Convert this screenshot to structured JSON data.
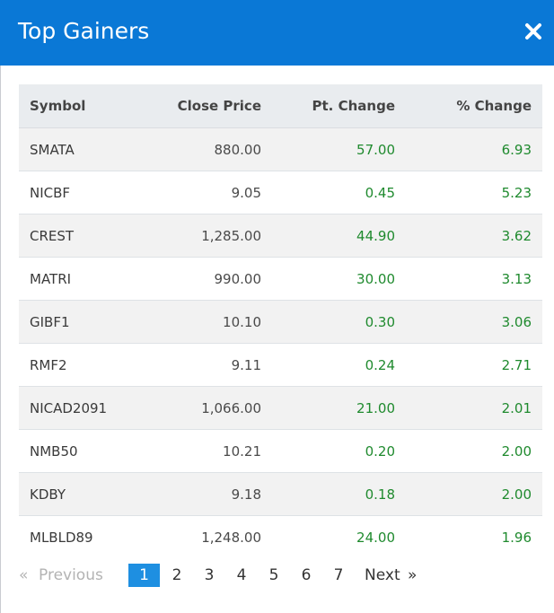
{
  "modal": {
    "title": "Top Gainers",
    "close_icon": "close-icon"
  },
  "table": {
    "headers": {
      "symbol": "Symbol",
      "close_price": "Close Price",
      "pt_change": "Pt. Change",
      "pct_change": "% Change"
    },
    "rows": [
      {
        "symbol": "SMATA",
        "close_price": "880.00",
        "pt_change": "57.00",
        "pct_change": "6.93"
      },
      {
        "symbol": "NICBF",
        "close_price": "9.05",
        "pt_change": "0.45",
        "pct_change": "5.23"
      },
      {
        "symbol": "CREST",
        "close_price": "1,285.00",
        "pt_change": "44.90",
        "pct_change": "3.62"
      },
      {
        "symbol": "MATRI",
        "close_price": "990.00",
        "pt_change": "30.00",
        "pct_change": "3.13"
      },
      {
        "symbol": "GIBF1",
        "close_price": "10.10",
        "pt_change": "0.30",
        "pct_change": "3.06"
      },
      {
        "symbol": "RMF2",
        "close_price": "9.11",
        "pt_change": "0.24",
        "pct_change": "2.71"
      },
      {
        "symbol": "NICAD2091",
        "close_price": "1,066.00",
        "pt_change": "21.00",
        "pct_change": "2.01"
      },
      {
        "symbol": "NMB50",
        "close_price": "10.21",
        "pt_change": "0.20",
        "pct_change": "2.00"
      },
      {
        "symbol": "KDBY",
        "close_price": "9.18",
        "pt_change": "0.18",
        "pct_change": "2.00"
      },
      {
        "symbol": "MLBLD89",
        "close_price": "1,248.00",
        "pt_change": "24.00",
        "pct_change": "1.96"
      }
    ]
  },
  "pagination": {
    "prev_arrow": "«",
    "prev_label": "Previous",
    "pages": [
      "1",
      "2",
      "3",
      "4",
      "5",
      "6",
      "7"
    ],
    "active_page": "1",
    "next_label": "Next",
    "next_arrow": "»"
  },
  "colors": {
    "header_bg": "#0a78d6",
    "positive": "#1f8a2e",
    "active_page": "#1e8fe1"
  }
}
